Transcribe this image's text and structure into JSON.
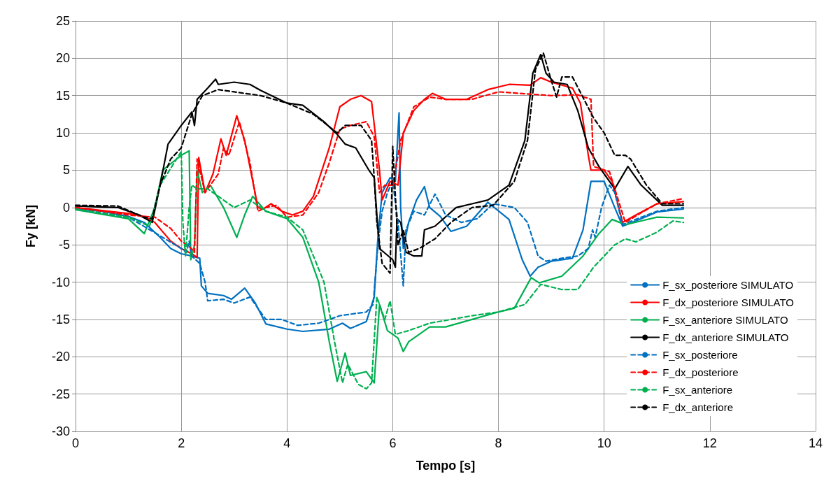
{
  "chart_data": {
    "type": "line",
    "xlabel": "Tempo [s]",
    "ylabel": "Fy [kN]",
    "xlim": [
      0,
      14
    ],
    "xticks": [
      0,
      2,
      4,
      6,
      8,
      10,
      12,
      14
    ],
    "ylim": [
      -30,
      25
    ],
    "yticks": [
      -30,
      -25,
      -20,
      -15,
      -10,
      -5,
      0,
      5,
      10,
      15,
      20,
      25
    ],
    "grid": true,
    "legend": "bottom right",
    "series": [
      {
        "name": "F_sx_posteriore SIMULATO",
        "color": "#0070c0",
        "line_style": "solid",
        "x": [
          0,
          0.5,
          1,
          1.3,
          1.6,
          1.8,
          2,
          2.2,
          2.35,
          2.38,
          2.5,
          2.8,
          2.95,
          3.2,
          3.4,
          3.6,
          4,
          4.3,
          4.8,
          5.05,
          5.2,
          5.5,
          5.65,
          5.72,
          5.8,
          5.95,
          6.05,
          6.12,
          6.15,
          6.2,
          6.3,
          6.45,
          6.6,
          6.7,
          6.9,
          7.1,
          7.4,
          7.8,
          8.2,
          8.45,
          8.6,
          8.75,
          9,
          9.4,
          9.6,
          9.75,
          10,
          10.2,
          10.35,
          10.6,
          11,
          11.5
        ],
        "values": [
          -0.2,
          -0.5,
          -1.2,
          -2,
          -4,
          -5.5,
          -6.2,
          -6.5,
          -6.8,
          -10.5,
          -11.5,
          -11.8,
          -12.3,
          -10.8,
          -12.8,
          -15.6,
          -16.3,
          -16.6,
          -16.3,
          -15.5,
          -16.2,
          -15.3,
          -12,
          -4,
          2,
          4,
          3.5,
          12.7,
          0,
          -5.5,
          -2,
          1,
          2.8,
          0,
          -1.2,
          -3.2,
          -2.5,
          0.7,
          -1.6,
          -7,
          -9.2,
          -8,
          -7.2,
          -6.8,
          -3,
          3.5,
          3.5,
          0,
          -2.5,
          -1.8,
          -0.6,
          -0.2
        ]
      },
      {
        "name": "F_dx_posteriore SIMULATO",
        "color": "#ff0000",
        "line_style": "solid",
        "x": [
          0,
          1,
          1.3,
          1.5,
          1.8,
          2,
          2.2,
          2.3,
          2.33,
          2.45,
          2.6,
          2.75,
          2.85,
          3.05,
          3.2,
          3.45,
          3.55,
          3.7,
          3.9,
          4.1,
          4.3,
          4.5,
          4.8,
          5,
          5.2,
          5.4,
          5.6,
          5.75,
          5.8,
          5.95,
          6.1,
          6.2,
          6.4,
          6.6,
          6.75,
          7,
          7.4,
          7.8,
          8.2,
          8.6,
          8.8,
          9,
          9.4,
          9.55,
          9.7,
          9.75,
          10,
          10.15,
          10.35,
          10.6,
          11,
          11.5
        ],
        "values": [
          0,
          -0.8,
          -1.2,
          -2,
          -4.5,
          -5.5,
          -6.2,
          -6.7,
          6.7,
          2,
          4.5,
          9.2,
          7,
          12.3,
          9,
          0,
          -0.2,
          0.5,
          -0.5,
          -1,
          -0.5,
          1.5,
          8,
          13.5,
          14.5,
          15,
          14.2,
          5,
          1,
          3.5,
          3,
          10,
          13,
          14.5,
          15.3,
          14.5,
          14.5,
          15.8,
          16.5,
          16.4,
          17.4,
          16.8,
          16,
          14,
          7,
          5,
          5,
          3.5,
          -2,
          -1,
          0.5,
          0.8
        ]
      },
      {
        "name": "F_sx_anteriore SIMULATO",
        "color": "#00b050",
        "line_style": "solid",
        "x": [
          0,
          1,
          1.3,
          1.5,
          1.65,
          2,
          2.15,
          2.18,
          2.25,
          2.3,
          2.4,
          2.55,
          2.8,
          3.05,
          3.2,
          3.35,
          3.6,
          4,
          4.3,
          4.6,
          4.8,
          4.95,
          5.1,
          5.2,
          5.5,
          5.65,
          5.75,
          5.9,
          6.1,
          6.2,
          6.3,
          6.7,
          7,
          7.5,
          8,
          8.3,
          8.62,
          8.77,
          9.2,
          9.6,
          9.9,
          10.15,
          10.4,
          10.7,
          11,
          11.5
        ],
        "values": [
          -0.3,
          -1.5,
          -3.5,
          0,
          5,
          7,
          7.6,
          -7,
          -5,
          5,
          2,
          3,
          0,
          -4,
          -1,
          1.5,
          -0.5,
          -1.5,
          -4,
          -10,
          -18,
          -23.3,
          -19.5,
          -22.5,
          -22,
          -23.5,
          -13,
          -16.5,
          -17.5,
          -19.3,
          -18,
          -16,
          -16,
          -15,
          -14,
          -13.5,
          -9.4,
          -10.1,
          -9.2,
          -6.5,
          -3.5,
          -1.6,
          -2.3,
          -1.8,
          -1.3,
          -1.4
        ]
      },
      {
        "name": "F_dx_anteriore SIMULATO",
        "color": "#000000",
        "line_style": "solid",
        "x": [
          0,
          0.8,
          1.2,
          1.45,
          1.6,
          1.75,
          2,
          2.2,
          2.25,
          2.3,
          2.5,
          2.65,
          2.7,
          3,
          3.3,
          3.5,
          4,
          4.3,
          4.7,
          4.95,
          5.1,
          5.3,
          5.55,
          5.65,
          5.7,
          5.75,
          6,
          6.05,
          6.08,
          6.15,
          6.25,
          6.4,
          6.55,
          6.6,
          6.8,
          7.2,
          7.5,
          7.8,
          8.2,
          8.5,
          8.65,
          8.8,
          8.9,
          9.05,
          9.3,
          9.5,
          9.7,
          9.9,
          10.2,
          10.45,
          10.7,
          11.1,
          11.5
        ],
        "values": [
          0.2,
          0,
          -1,
          -2,
          3,
          8.5,
          11,
          12.8,
          11,
          14.5,
          16,
          17.2,
          16.5,
          16.8,
          16.5,
          15.7,
          14,
          13.7,
          11.5,
          9.8,
          8.5,
          8,
          5,
          4,
          -1,
          -5.5,
          -7,
          -8,
          -1.5,
          -2,
          -6,
          -6.5,
          -6.5,
          -3,
          -2.5,
          0,
          0.5,
          1,
          3,
          9,
          18,
          20.5,
          18,
          16.8,
          16.5,
          13,
          8,
          5.5,
          2.5,
          5.5,
          3,
          0.3,
          0.3
        ]
      },
      {
        "name": "F_sx_posteriore",
        "color": "#0070c0",
        "line_style": "dashed",
        "x": [
          0,
          1,
          1.6,
          2,
          2.1,
          2.15,
          2.2,
          2.35,
          2.45,
          2.5,
          2.8,
          3,
          3.3,
          3.6,
          3.9,
          4.2,
          4.6,
          5,
          5.5,
          5.63,
          5.72,
          5.8,
          5.9,
          6,
          6.1,
          6.2,
          6.25,
          6.4,
          6.6,
          6.8,
          7,
          7.3,
          7.6,
          7.9,
          8.3,
          8.55,
          8.75,
          8.9,
          9.2,
          9.5,
          9.7,
          9.78,
          9.83,
          9.95,
          10.1,
          10.2,
          10.35,
          10.7,
          11,
          11.5
        ],
        "values": [
          -0.2,
          -1.3,
          -3.8,
          -5.5,
          -6,
          -4.5,
          -6.5,
          -7.5,
          -10,
          -12.5,
          -12.3,
          -12.8,
          -12,
          -15,
          -15,
          -15.8,
          -15.5,
          -14.5,
          -14,
          -13,
          -5,
          -0.5,
          2,
          3.5,
          -2,
          -10.5,
          -3,
          -0.5,
          -1,
          1.8,
          -1,
          -2,
          -1.5,
          0.5,
          0,
          -2,
          -6.5,
          -7.2,
          -6.8,
          -6.5,
          -5.5,
          -3,
          -4,
          0,
          3,
          2,
          -2.3,
          -1.3,
          -0.5,
          0
        ]
      },
      {
        "name": "F_dx_posteriore",
        "color": "#ff0000",
        "line_style": "dashed",
        "x": [
          0,
          1,
          1.5,
          1.8,
          2,
          2.15,
          2.25,
          2.3,
          2.45,
          2.7,
          2.8,
          2.9,
          3.1,
          3.3,
          3.45,
          3.6,
          3.8,
          4,
          4.3,
          4.6,
          4.8,
          5,
          5.2,
          5.5,
          5.65,
          5.75,
          5.85,
          6,
          6.15,
          6.4,
          6.7,
          7,
          7.5,
          8,
          8.6,
          9,
          9.5,
          9.75,
          9.8,
          10.1,
          10.4,
          10.7,
          11,
          11.5
        ],
        "values": [
          0,
          -1,
          -1.3,
          -2.8,
          -4.5,
          -5.2,
          -6,
          6.5,
          2,
          4.5,
          8,
          7,
          11.5,
          6,
          -0.5,
          0,
          0.3,
          -1.3,
          -1,
          2,
          6,
          10.5,
          11,
          11.5,
          9.5,
          2,
          3,
          3,
          9,
          13.5,
          14.8,
          14.5,
          14.5,
          15.5,
          15.2,
          15,
          15.1,
          14.5,
          5.5,
          4.8,
          -2,
          -0.7,
          0.5,
          1.2
        ]
      },
      {
        "name": "F_sx_anteriore",
        "color": "#00b050",
        "line_style": "dashed",
        "x": [
          0,
          1,
          1.4,
          1.6,
          2,
          2.03,
          2.08,
          2.15,
          2.2,
          2.3,
          2.5,
          2.7,
          3,
          3.3,
          3.6,
          4,
          4.3,
          4.7,
          4.9,
          5.05,
          5.15,
          5.35,
          5.5,
          5.6,
          5.7,
          5.85,
          5.95,
          6.05,
          6.3,
          6.7,
          7.5,
          8,
          8.5,
          8.8,
          9.2,
          9.5,
          9.8,
          10.2,
          10.4,
          10.6,
          11,
          11.3,
          11.5
        ],
        "values": [
          -0.2,
          -1.3,
          -2.5,
          3,
          7.5,
          -2,
          -6.5,
          0,
          3,
          2.5,
          2.5,
          1.5,
          0,
          1,
          -0.5,
          -1.3,
          -3,
          -10,
          -18,
          -23.5,
          -21,
          -23.7,
          -24.3,
          -23.5,
          -12,
          -15,
          -12.5,
          -17,
          -16.5,
          -15.5,
          -14.5,
          -14,
          -13,
          -10.3,
          -11,
          -11,
          -8,
          -5,
          -4.2,
          -4.6,
          -3.3,
          -1.8,
          -2
        ]
      },
      {
        "name": "F_dx_anteriore",
        "color": "#000000",
        "line_style": "dashed",
        "x": [
          0,
          0.8,
          1.3,
          1.45,
          1.6,
          1.8,
          2,
          2.2,
          2.4,
          2.7,
          3,
          3.5,
          4,
          4.5,
          4.95,
          5.1,
          5.4,
          5.6,
          5.65,
          5.7,
          5.8,
          5.95,
          6,
          6.1,
          6.2,
          6.3,
          6.5,
          6.8,
          7.1,
          7.5,
          7.9,
          8.3,
          8.55,
          8.7,
          8.85,
          9,
          9.1,
          9.2,
          9.4,
          9.8,
          10,
          10.2,
          10.4,
          10.5,
          10.8,
          11.1,
          11.5
        ],
        "values": [
          0.3,
          0.2,
          -1.3,
          -1.5,
          3,
          6.5,
          8,
          12.5,
          15,
          15.8,
          15.5,
          15,
          14,
          12.5,
          10,
          11,
          11,
          9,
          4,
          -2,
          -7.5,
          -8.8,
          8.2,
          -5,
          -3,
          -6,
          -5.5,
          -4.2,
          -2,
          0,
          0.3,
          3.5,
          9,
          18.5,
          20.7,
          17,
          14.8,
          17.5,
          17.5,
          12,
          10,
          7,
          7,
          6.5,
          3,
          0.5,
          0.5
        ]
      }
    ]
  }
}
